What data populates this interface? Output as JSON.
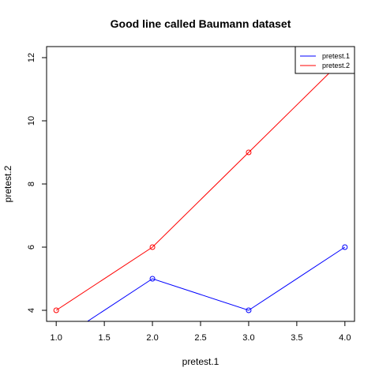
{
  "chart_data": {
    "type": "line",
    "title": "Good line called Baumann dataset",
    "xlabel": "pretest.1",
    "ylabel": "pretest.2",
    "xlim": [
      0.9,
      4.1
    ],
    "ylim": [
      3.65,
      12.35
    ],
    "x_ticks": [
      "1.0",
      "1.5",
      "2.0",
      "2.5",
      "3.0",
      "3.5",
      "4.0"
    ],
    "y_ticks": [
      "4",
      "6",
      "8",
      "10",
      "12"
    ],
    "grid": false,
    "legend_position": "top-right",
    "series": [
      {
        "name": "pretest.1",
        "color": "#0000ff",
        "marker": "open-circle",
        "x": [
          1,
          2,
          3,
          4
        ],
        "y": [
          3,
          5,
          4,
          6
        ]
      },
      {
        "name": "pretest.2",
        "color": "#ff0000",
        "marker": "open-circle",
        "x": [
          1,
          2,
          3,
          4
        ],
        "y": [
          4,
          6,
          9,
          12
        ]
      }
    ]
  }
}
